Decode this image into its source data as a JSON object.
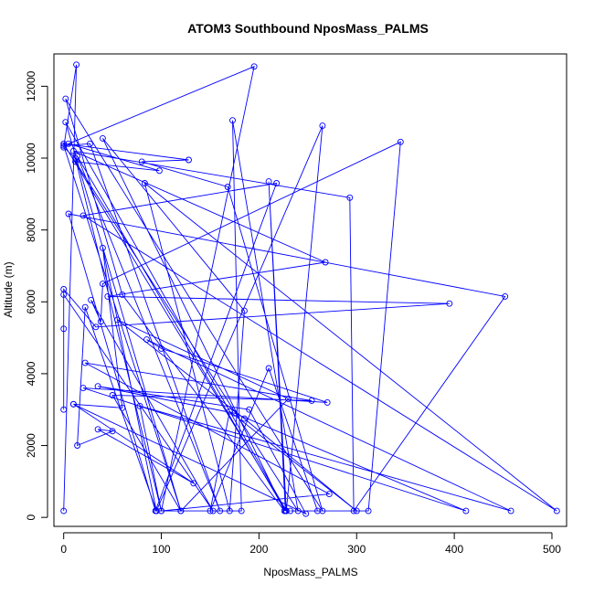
{
  "chart_data": {
    "type": "line",
    "title": "ATOM3 Southbound NposMass_PALMS",
    "xlabel": "NposMass_PALMS",
    "ylabel": "Altitude (m)",
    "xlim": [
      -10,
      515
    ],
    "ylim": [
      -250,
      12900
    ],
    "xticks": [
      "0",
      "100",
      "200",
      "300",
      "400",
      "500"
    ],
    "yticks": [
      "0",
      "2000",
      "4000",
      "6000",
      "8000",
      "10000",
      "12000"
    ],
    "grid": false,
    "legend": "none",
    "style": "lines+open-circle-markers",
    "colors": {
      "series": "#0000ff",
      "frame": "#000000"
    },
    "series": [
      {
        "points": [
          [
            0,
            180
          ],
          [
            13,
            12600
          ],
          [
            0,
            10300
          ],
          [
            12,
            10000
          ],
          [
            100,
            180
          ],
          [
            195,
            12550
          ],
          [
            5,
            10400
          ],
          [
            98,
            9650
          ],
          [
            12,
            9900
          ],
          [
            240,
            180
          ],
          [
            173,
            11050
          ],
          [
            182,
            180
          ],
          [
            95,
            180
          ],
          [
            265,
            10900
          ],
          [
            228,
            180
          ],
          [
            2,
            11000
          ],
          [
            120,
            180
          ],
          [
            0,
            10350
          ],
          [
            27,
            10400
          ],
          [
            160,
            180
          ],
          [
            14,
            10050
          ],
          [
            227,
            180
          ],
          [
            210,
            9350
          ],
          [
            228,
            180
          ],
          [
            0,
            10400
          ],
          [
            128,
            9950
          ],
          [
            80,
            9900
          ],
          [
            168,
            9200
          ],
          [
            265,
            180
          ],
          [
            2,
            11650
          ],
          [
            60,
            6200
          ],
          [
            226,
            180
          ],
          [
            40,
            10550
          ],
          [
            185,
            5750
          ],
          [
            170,
            180
          ],
          [
            83,
            9300
          ],
          [
            505,
            180
          ],
          [
            20,
            8400
          ],
          [
            218,
            9300
          ],
          [
            94,
            180
          ],
          [
            5,
            8450
          ],
          [
            452,
            6150
          ],
          [
            297,
            180
          ],
          [
            293,
            8900
          ],
          [
            10,
            10200
          ],
          [
            268,
            7100
          ],
          [
            45,
            6150
          ],
          [
            395,
            5950
          ],
          [
            33,
            5300
          ],
          [
            0,
            6350
          ],
          [
            0,
            5250
          ],
          [
            0,
            3000
          ],
          [
            0,
            6200
          ],
          [
            153,
            180
          ],
          [
            28,
            6050
          ],
          [
            38,
            5450
          ],
          [
            40,
            6500
          ],
          [
            345,
            10450
          ],
          [
            312,
            180
          ],
          [
            232,
            180
          ],
          [
            260,
            180
          ],
          [
            210,
            4150
          ],
          [
            150,
            180
          ],
          [
            170,
            2950
          ],
          [
            300,
            180
          ],
          [
            185,
            2750
          ],
          [
            55,
            5500
          ],
          [
            230,
            3300
          ],
          [
            120,
            180
          ],
          [
            50,
            3400
          ],
          [
            254,
            3250
          ],
          [
            22,
            4300
          ],
          [
            272,
            650
          ],
          [
            100,
            180
          ],
          [
            78,
            3100
          ],
          [
            458,
            180
          ],
          [
            85,
            4950
          ],
          [
            100,
            4700
          ],
          [
            270,
            3200
          ],
          [
            20,
            3600
          ],
          [
            412,
            180
          ],
          [
            175,
            2900
          ],
          [
            35,
            3650
          ],
          [
            190,
            3000
          ],
          [
            248,
            100
          ],
          [
            10,
            3150
          ],
          [
            133,
            950
          ],
          [
            35,
            2450
          ],
          [
            50,
            2400
          ],
          [
            14,
            2000
          ],
          [
            22,
            5850
          ],
          [
            95,
            180
          ],
          [
            40,
            7500
          ],
          [
            60,
            3050
          ],
          [
            10,
            3150
          ]
        ]
      }
    ]
  }
}
